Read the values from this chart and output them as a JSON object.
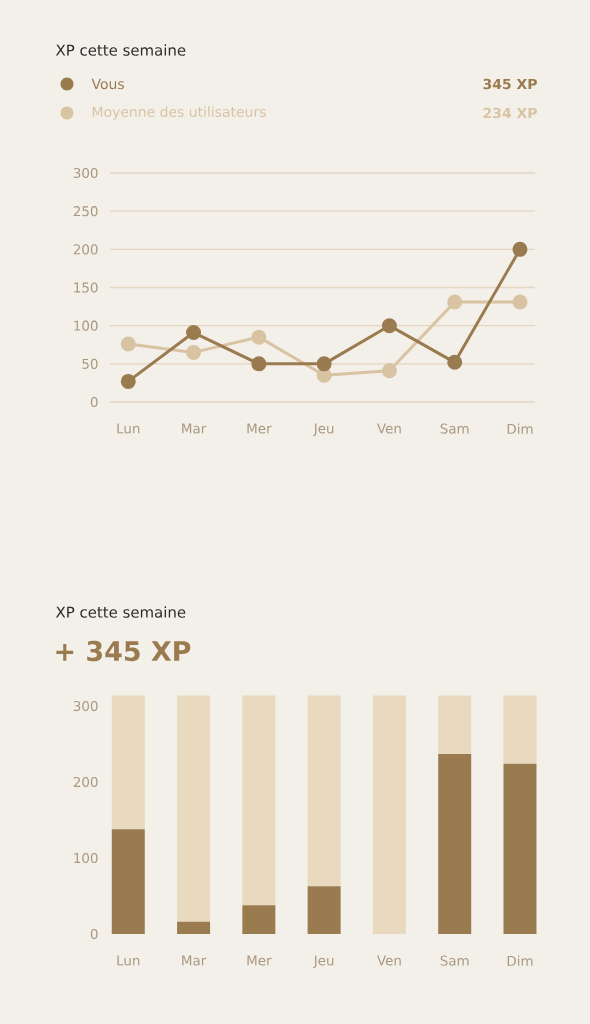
{
  "chart_data": [
    {
      "type": "line",
      "title": "XP cette semaine",
      "categories": [
        "Lun",
        "Mar",
        "Mer",
        "Jeu",
        "Ven",
        "Sam",
        "Dim"
      ],
      "series": [
        {
          "name": "Vous",
          "color": "#9a7b4f",
          "values": [
            27,
            91,
            50,
            50,
            100,
            52,
            200
          ]
        },
        {
          "name": "Moyenne des utilisateurs",
          "color": "#d8c3a2",
          "values": [
            76,
            65,
            85,
            35,
            41,
            131,
            131
          ]
        }
      ],
      "annotations": [
        "345 XP",
        "234 XP"
      ],
      "ylim": [
        0,
        300
      ],
      "yticks": [
        0,
        50,
        100,
        150,
        200,
        250,
        300
      ],
      "grid": "y",
      "legend": "top left",
      "marker": "circle",
      "line_style": "solid"
    },
    {
      "type": "bar",
      "title": "XP cette semaine",
      "subtitle": "+ 345 XP",
      "categories": [
        "Lun",
        "Mar",
        "Mer",
        "Jeu",
        "Ven",
        "Sam",
        "Dim"
      ],
      "stacked": true,
      "series": [
        {
          "color": "#9a7b4f",
          "values": [
            138,
            16,
            38,
            63,
            0,
            237,
            224
          ]
        },
        {
          "color": "#e8d9bf",
          "values": [
            176,
            298,
            276,
            251,
            314,
            77,
            90
          ]
        }
      ],
      "ylim": [
        0,
        314
      ],
      "yticks": [
        0,
        100,
        200,
        300
      ]
    }
  ]
}
